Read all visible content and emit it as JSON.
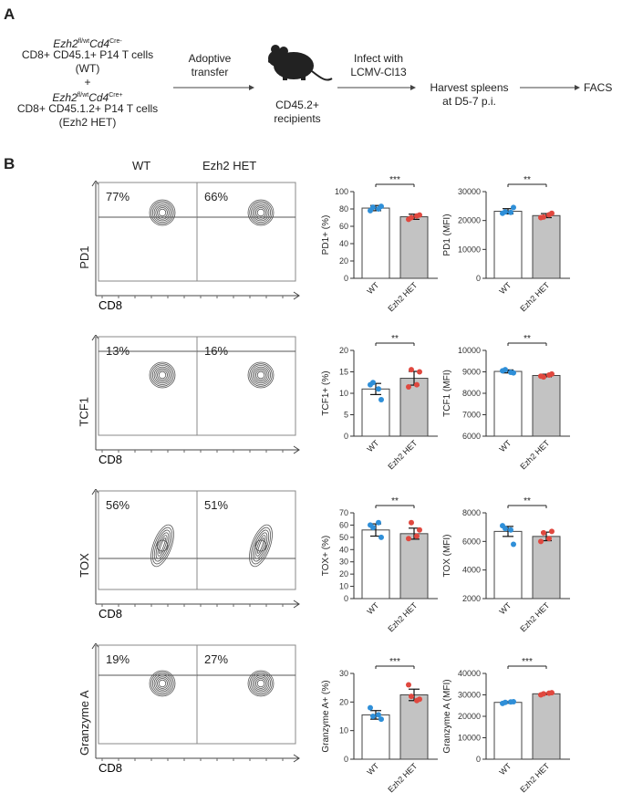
{
  "panel_a": {
    "letter": "A",
    "wt_genotype_main": "Ezh2",
    "wt_genotype_sup1": "fl/wt",
    "wt_genotype_cd4": "Cd4",
    "wt_genotype_sup2": "Cre-",
    "wt_cells_line": "CD8+ CD45.1+ P14 T cells",
    "wt_label": "(WT)",
    "plus": "+",
    "het_genotype_main": "Ezh2",
    "het_genotype_sup1": "fl/wt",
    "het_genotype_cd4": "Cd4",
    "het_genotype_sup2": "Cre+",
    "het_cells_line": "CD8+ CD45.1.2+ P14 T cells",
    "het_label": "(Ezh2 HET)",
    "step1_line1": "Adoptive",
    "step1_line2": "transfer",
    "recipient_line1": "CD45.2+",
    "recipient_line2": "recipients",
    "step2_line1": "Infect with",
    "step2_line2": "LCMV-Cl13",
    "step3_line1": "Harvest spleens",
    "step3_line2": "at D5-7 p.i.",
    "step4": "FACS"
  },
  "panel_b": {
    "letter": "B",
    "col_wt": "WT",
    "col_het": "Ezh2 HET",
    "x_axis_label": "CD8",
    "rows": [
      {
        "marker": "PD1",
        "wt_pct": "77%",
        "het_pct": "66%"
      },
      {
        "marker": "TCF1",
        "wt_pct": "13%",
        "het_pct": "16%"
      },
      {
        "marker": "TOX",
        "wt_pct": "56%",
        "het_pct": "51%"
      },
      {
        "marker": "Granzyme A",
        "wt_pct": "19%",
        "het_pct": "27%"
      }
    ]
  },
  "chart_data": [
    {
      "type": "bar",
      "categories": [
        "WT",
        "Ezh2 HET"
      ],
      "ylabel": "PD1+ (%)",
      "ylim": [
        0,
        100
      ],
      "yticks": [
        0,
        20,
        40,
        60,
        80,
        100
      ],
      "values": [
        81,
        71
      ],
      "errors": [
        3,
        3
      ],
      "points": [
        [
          78,
          83,
          82,
          80
        ],
        [
          68,
          73,
          70,
          72
        ]
      ],
      "significance": "***"
    },
    {
      "type": "bar",
      "categories": [
        "WT",
        "Ezh2 HET"
      ],
      "ylabel": "PD1 (MFI)",
      "ylim": [
        0,
        30000
      ],
      "yticks": [
        0,
        10000,
        20000,
        30000
      ],
      "values": [
        23200,
        21700
      ],
      "errors": [
        900,
        700
      ],
      "points": [
        [
          22500,
          24500,
          23000,
          22800
        ],
        [
          21000,
          22500,
          21200,
          22000
        ]
      ],
      "significance": "**"
    },
    {
      "type": "bar",
      "categories": [
        "WT",
        "Ezh2 HET"
      ],
      "ylabel": "TCF1+ (%)",
      "ylim": [
        0,
        20
      ],
      "yticks": [
        0,
        5,
        10,
        15,
        20
      ],
      "values": [
        11,
        13.5
      ],
      "errors": [
        1.3,
        1.6
      ],
      "points": [
        [
          12,
          8.5,
          12.5,
          11
        ],
        [
          11.5,
          15,
          15.5,
          12
        ]
      ],
      "significance": "**"
    },
    {
      "type": "bar",
      "categories": [
        "WT",
        "Ezh2 HET"
      ],
      "ylabel": "TCF1 (MFI)",
      "ylim": [
        6000,
        10000
      ],
      "yticks": [
        6000,
        7000,
        8000,
        9000,
        10000
      ],
      "values": [
        9020,
        8830
      ],
      "errors": [
        70,
        60
      ],
      "points": [
        [
          9050,
          8950,
          9100,
          8980
        ],
        [
          8800,
          8900,
          8760,
          8850
        ]
      ],
      "significance": "**"
    },
    {
      "type": "bar",
      "categories": [
        "WT",
        "Ezh2 HET"
      ],
      "ylabel": "TOX+ (%)",
      "ylim": [
        0,
        70
      ],
      "yticks": [
        0,
        10,
        20,
        30,
        40,
        50,
        60,
        70
      ],
      "values": [
        56,
        53
      ],
      "errors": [
        5,
        4.5
      ],
      "points": [
        [
          60,
          50,
          58,
          62
        ],
        [
          49,
          56,
          62,
          51
        ]
      ],
      "significance": "**"
    },
    {
      "type": "bar",
      "categories": [
        "WT",
        "Ezh2 HET"
      ],
      "ylabel": "TOX (MFI)",
      "ylim": [
        2000,
        8000
      ],
      "yticks": [
        2000,
        4000,
        6000,
        8000
      ],
      "values": [
        6700,
        6350
      ],
      "errors": [
        350,
        300
      ],
      "points": [
        [
          7100,
          5800,
          6900,
          6800
        ],
        [
          6000,
          6700,
          6600,
          6200
        ]
      ],
      "significance": "**"
    },
    {
      "type": "bar",
      "categories": [
        "WT",
        "Ezh2 HET"
      ],
      "ylabel": "Granzyme A+ (%)",
      "ylim": [
        0,
        30
      ],
      "yticks": [
        0,
        10,
        20,
        30
      ],
      "values": [
        15.5,
        22.5
      ],
      "errors": [
        1.5,
        2
      ],
      "points": [
        [
          18,
          14,
          15,
          15.5
        ],
        [
          26,
          21,
          22,
          20.5
        ]
      ],
      "significance": "***"
    },
    {
      "type": "bar",
      "categories": [
        "WT",
        "Ezh2 HET"
      ],
      "ylabel": "Granzyme A (MFI)",
      "ylim": [
        0,
        40000
      ],
      "yticks": [
        0,
        10000,
        20000,
        30000,
        40000
      ],
      "values": [
        26500,
        30500
      ],
      "errors": [
        400,
        400
      ],
      "points": [
        [
          26000,
          26800,
          26500,
          26700
        ],
        [
          30000,
          31000,
          30500,
          30800
        ]
      ],
      "significance": "***"
    }
  ]
}
